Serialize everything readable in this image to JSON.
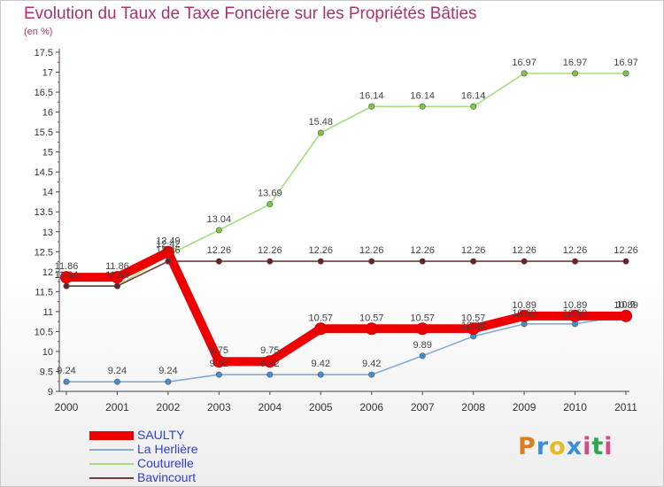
{
  "header": {
    "title": "Evolution du Taux de Taxe Foncière sur les Propriétés Bâties",
    "subtitle": "(en %)"
  },
  "logo": {
    "text": "Proxiti",
    "colors": [
      "#e07b1f",
      "#3a8fd6",
      "#e8b920",
      "#3a8fd6",
      "#d64a8a",
      "#2aa84a",
      "#d64a8a"
    ]
  },
  "chart_data": {
    "type": "line",
    "x": [
      "2000",
      "2001",
      "2002",
      "2003",
      "2004",
      "2005",
      "2006",
      "2007",
      "2008",
      "2009",
      "2010",
      "2011"
    ],
    "ylim": [
      9,
      17.5
    ],
    "yticks": [
      "9",
      "9.5",
      "10",
      "10.5",
      "11",
      "11.5",
      "12",
      "12.5",
      "13",
      "13.5",
      "14",
      "14.5",
      "15",
      "15.5",
      "16",
      "16.5",
      "17",
      "17.5"
    ],
    "grid": false,
    "legend_position": "bottom-left",
    "series": [
      {
        "name": "Couturelle",
        "color": "#a4df7c",
        "marker": "#7fc447",
        "values": [
          11.64,
          11.64,
          12.42,
          13.04,
          13.69,
          15.48,
          16.14,
          16.14,
          16.14,
          16.97,
          16.97,
          16.97
        ],
        "labels": [
          "11.64",
          "11.64",
          "12.42",
          "13.04",
          "13.69",
          "15.48",
          "16.14",
          "16.14",
          "16.14",
          "16.97",
          "16.97",
          "16.97"
        ]
      },
      {
        "name": "Bavincourt",
        "color": "#7a3a3a",
        "marker": "#6a1f2a",
        "values": [
          11.64,
          11.64,
          12.26,
          12.26,
          12.26,
          12.26,
          12.26,
          12.26,
          12.26,
          12.26,
          12.26,
          12.26
        ],
        "labels": [
          "11.64",
          "11.64",
          "12.26",
          "12.26",
          "12.26",
          "12.26",
          "12.26",
          "12.26",
          "12.26",
          "12.26",
          "12.26",
          "12.26"
        ]
      },
      {
        "name": "La Herlière",
        "color": "#86abcf",
        "marker": "#3d8fd8",
        "values": [
          9.24,
          9.24,
          9.24,
          9.42,
          9.42,
          9.42,
          9.42,
          9.89,
          10.38,
          10.69,
          10.69,
          10.9
        ],
        "labels": [
          "9.24",
          "9.24",
          "9.24",
          "9.42",
          "9.42",
          "9.42",
          "9.42",
          "9.89",
          "10.38",
          "10.69",
          "10.69",
          "10.9"
        ]
      },
      {
        "name": "SAULTY",
        "color": "#ee0000",
        "marker": "#ee0000",
        "values": [
          11.86,
          11.86,
          12.49,
          9.75,
          9.75,
          10.57,
          10.57,
          10.57,
          10.57,
          10.89,
          10.89,
          10.89
        ],
        "labels": [
          "11.86",
          "11.86",
          "12.49",
          "9.75",
          "9.75",
          "10.57",
          "10.57",
          "10.57",
          "10.57",
          "10.89",
          "10.89",
          "10.89"
        ]
      }
    ],
    "legend_order": [
      "SAULTY",
      "La Herlière",
      "Couturelle",
      "Bavincourt"
    ]
  }
}
